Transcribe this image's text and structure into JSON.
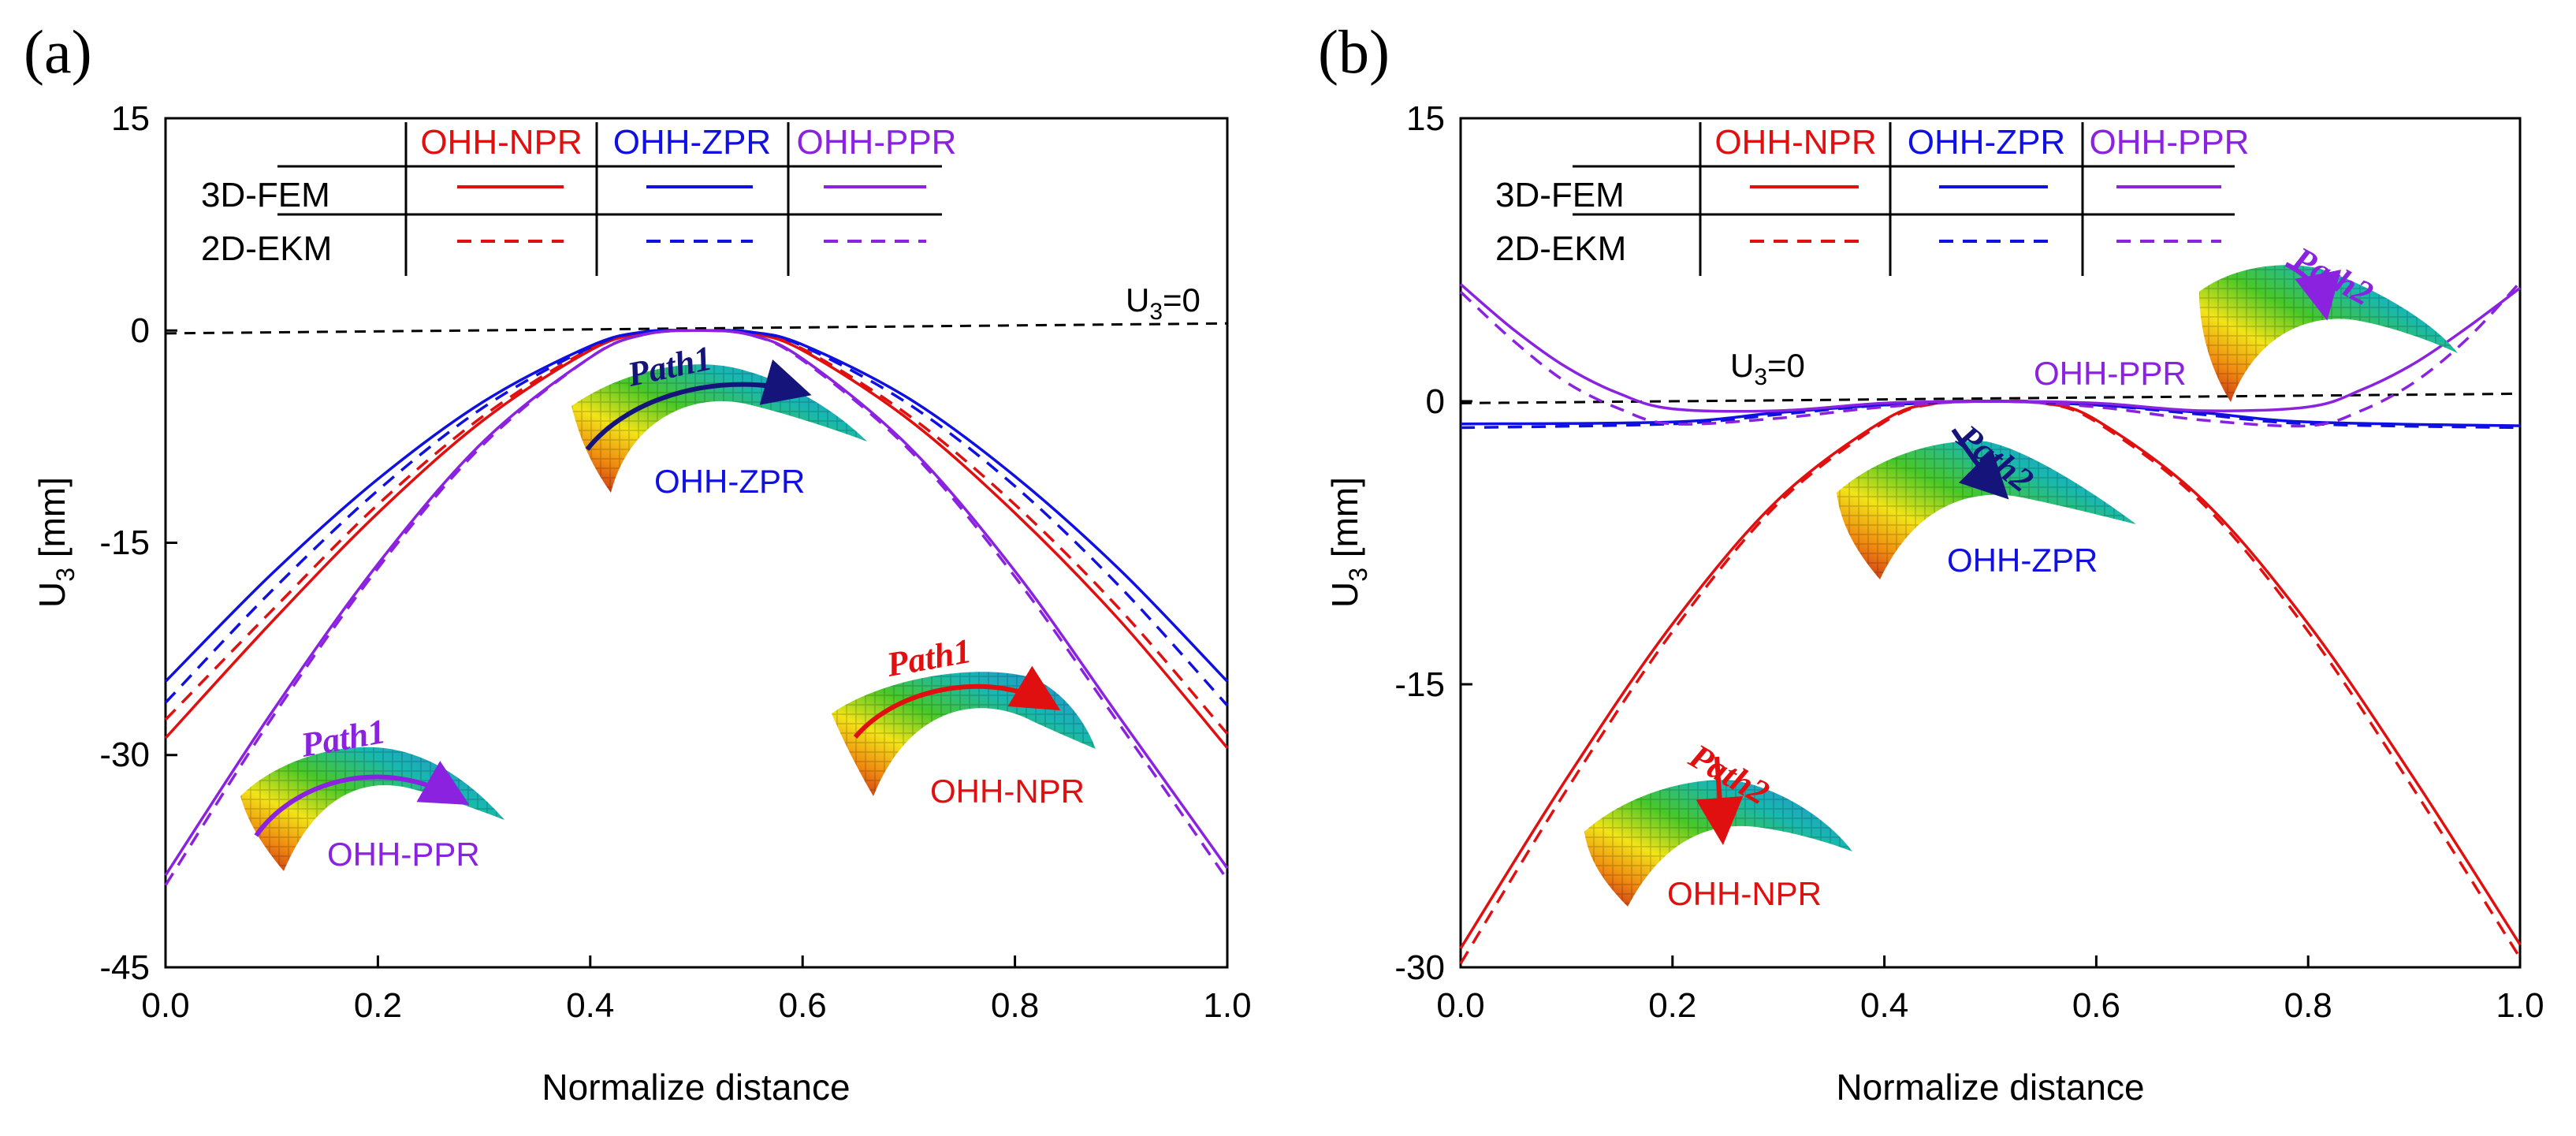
{
  "chart_data": [
    {
      "type": "line",
      "panel": "(a)",
      "xlabel": "Normalize distance",
      "ylabel": "U",
      "ylabel_sub": "3",
      "ylabel_unit": " [mm]",
      "xlim": [
        0.0,
        1.0
      ],
      "ylim": [
        -45,
        15
      ],
      "xticks": [
        "0.0",
        "0.2",
        "0.4",
        "0.6",
        "0.8",
        "1.0"
      ],
      "yticks": [
        "15",
        "0",
        "-15",
        "-30",
        "-45"
      ],
      "legend": {
        "columns": [
          "OHH-NPR",
          "OHH-ZPR",
          "OHH-PPR"
        ],
        "rows": [
          "3D-FEM",
          "2D-EKM"
        ]
      },
      "reference": {
        "label": "U",
        "sub": "3",
        "suffix": "=0",
        "y0": -0.2,
        "y1": 0.5
      },
      "annotations": [
        {
          "text": "OHH-ZPR",
          "color": "#1010e0",
          "path_label": "Path1"
        },
        {
          "text": "OHH-NPR",
          "color": "#e01010",
          "path_label": "Path1"
        },
        {
          "text": "OHH-PPR",
          "color": "#8a22e0",
          "path_label": "Path1"
        }
      ],
      "series": [
        {
          "name": "OHH-NPR 3D-FEM",
          "color": "#e01010",
          "dash": false,
          "x": [
            0,
            0.1,
            0.2,
            0.3,
            0.4,
            0.45,
            0.5,
            0.55,
            0.6,
            0.7,
            0.8,
            0.9,
            1.0
          ],
          "y": [
            -28.8,
            -20.6,
            -12.9,
            -6.3,
            -1.4,
            -0.2,
            0,
            -0.2,
            -1.4,
            -6.3,
            -12.9,
            -20.6,
            -29.5
          ]
        },
        {
          "name": "OHH-NPR 2D-EKM",
          "color": "#e01010",
          "dash": true,
          "x": [
            0,
            0.1,
            0.2,
            0.3,
            0.4,
            0.45,
            0.5,
            0.55,
            0.6,
            0.7,
            0.8,
            0.9,
            1.0
          ],
          "y": [
            -27.5,
            -19.8,
            -12.3,
            -6.0,
            -1.3,
            -0.2,
            0,
            -0.2,
            -1.3,
            -6.0,
            -12.3,
            -19.8,
            -28.5
          ]
        },
        {
          "name": "OHH-ZPR 3D-FEM",
          "color": "#1010e0",
          "dash": false,
          "x": [
            0,
            0.1,
            0.2,
            0.3,
            0.4,
            0.45,
            0.5,
            0.55,
            0.6,
            0.7,
            0.8,
            0.9,
            1.0
          ],
          "y": [
            -24.8,
            -17.2,
            -10.5,
            -5.0,
            -1.1,
            -0.1,
            0,
            -0.1,
            -1.0,
            -4.8,
            -10.3,
            -17.0,
            -24.8
          ]
        },
        {
          "name": "OHH-ZPR 2D-EKM",
          "color": "#1010e0",
          "dash": true,
          "x": [
            0,
            0.1,
            0.2,
            0.3,
            0.4,
            0.45,
            0.5,
            0.55,
            0.6,
            0.7,
            0.8,
            0.9,
            1.0
          ],
          "y": [
            -26.3,
            -18.4,
            -11.3,
            -5.4,
            -1.2,
            -0.1,
            0,
            -0.1,
            -1.1,
            -5.2,
            -11.0,
            -18.2,
            -26.5
          ]
        },
        {
          "name": "OHH-PPR 3D-FEM",
          "color": "#8a22e0",
          "dash": false,
          "x": [
            0,
            0.1,
            0.2,
            0.3,
            0.4,
            0.45,
            0.5,
            0.55,
            0.6,
            0.7,
            0.8,
            0.9,
            1.0
          ],
          "y": [
            -38.5,
            -27.0,
            -16.5,
            -7.8,
            -1.9,
            -0.3,
            0,
            -0.3,
            -2.0,
            -8.2,
            -17.0,
            -27.5,
            -38.0
          ]
        },
        {
          "name": "OHH-PPR 2D-EKM",
          "color": "#8a22e0",
          "dash": true,
          "x": [
            0,
            0.1,
            0.2,
            0.3,
            0.4,
            0.45,
            0.5,
            0.55,
            0.6,
            0.7,
            0.8,
            0.9,
            1.0
          ],
          "y": [
            -39.2,
            -27.4,
            -16.8,
            -8.0,
            -1.9,
            -0.3,
            0,
            -0.3,
            -2.1,
            -8.4,
            -17.4,
            -28.0,
            -38.8
          ]
        }
      ]
    },
    {
      "type": "line",
      "panel": "(b)",
      "xlabel": "Normalize distance",
      "ylabel": "U",
      "ylabel_sub": "3",
      "ylabel_unit": " [mm]",
      "xlim": [
        0.0,
        1.0
      ],
      "ylim": [
        -30,
        15
      ],
      "xticks": [
        "0.0",
        "0.2",
        "0.4",
        "0.6",
        "0.8",
        "1.0"
      ],
      "yticks": [
        "15",
        "0",
        "-15",
        "-30"
      ],
      "legend": {
        "columns": [
          "OHH-NPR",
          "OHH-ZPR",
          "OHH-PPR"
        ],
        "rows": [
          "3D-FEM",
          "2D-EKM"
        ]
      },
      "reference": {
        "label": "U",
        "sub": "3",
        "suffix": "=0",
        "y0": -0.1,
        "y1": 0.4
      },
      "annotations": [
        {
          "text": "OHH-PPR",
          "color": "#8a22e0",
          "path_label": "Path2"
        },
        {
          "text": "OHH-ZPR",
          "color": "#1010e0",
          "path_label": "Path2"
        },
        {
          "text": "OHH-NPR",
          "color": "#e01010",
          "path_label": "Path2"
        }
      ],
      "series": [
        {
          "name": "OHH-NPR 3D-FEM",
          "color": "#e01010",
          "dash": false,
          "x": [
            0,
            0.1,
            0.2,
            0.3,
            0.4,
            0.45,
            0.5,
            0.55,
            0.6,
            0.7,
            0.8,
            0.9,
            1.0
          ],
          "y": [
            -29.0,
            -20.0,
            -11.8,
            -5.2,
            -1.0,
            -0.1,
            0,
            -0.1,
            -1.0,
            -5.2,
            -11.8,
            -20.0,
            -28.8
          ]
        },
        {
          "name": "OHH-NPR 2D-EKM",
          "color": "#e01010",
          "dash": true,
          "x": [
            0,
            0.1,
            0.2,
            0.3,
            0.4,
            0.45,
            0.5,
            0.55,
            0.6,
            0.7,
            0.8,
            0.9,
            1.0
          ],
          "y": [
            -29.8,
            -20.6,
            -12.2,
            -5.4,
            -1.1,
            -0.1,
            0,
            -0.1,
            -1.1,
            -5.4,
            -12.2,
            -20.6,
            -29.5
          ]
        },
        {
          "name": "OHH-ZPR 3D-FEM",
          "color": "#1010e0",
          "dash": false,
          "x": [
            0,
            0.2,
            0.3,
            0.4,
            0.5,
            0.6,
            0.7,
            0.8,
            1.0
          ],
          "y": [
            -1.2,
            -1.1,
            -0.6,
            -0.2,
            0,
            -0.2,
            -0.6,
            -1.1,
            -1.3
          ]
        },
        {
          "name": "OHH-ZPR 2D-EKM",
          "color": "#1010e0",
          "dash": true,
          "x": [
            0,
            0.2,
            0.3,
            0.4,
            0.5,
            0.6,
            0.7,
            0.8,
            1.0
          ],
          "y": [
            -1.4,
            -1.2,
            -0.7,
            -0.2,
            0,
            -0.2,
            -0.7,
            -1.2,
            -1.4
          ]
        },
        {
          "name": "OHH-PPR 3D-FEM",
          "color": "#8a22e0",
          "dash": false,
          "x": [
            0,
            0.05,
            0.1,
            0.15,
            0.2,
            0.3,
            0.4,
            0.5,
            0.6,
            0.7,
            0.8,
            0.85,
            0.9,
            0.95,
            1.0
          ],
          "y": [
            6.2,
            3.8,
            1.8,
            0.4,
            -0.4,
            -0.5,
            -0.1,
            0,
            -0.1,
            -0.5,
            -0.3,
            0.6,
            2.0,
            3.9,
            6.0
          ]
        },
        {
          "name": "OHH-PPR 2D-EKM",
          "color": "#8a22e0",
          "dash": true,
          "x": [
            0,
            0.05,
            0.1,
            0.15,
            0.2,
            0.3,
            0.4,
            0.5,
            0.6,
            0.7,
            0.8,
            0.85,
            0.9,
            0.95,
            1.0
          ],
          "y": [
            5.8,
            3.2,
            1.0,
            -0.4,
            -1.2,
            -0.9,
            -0.3,
            0,
            -0.3,
            -1.0,
            -1.3,
            -0.5,
            1.0,
            3.3,
            6.3
          ]
        }
      ]
    }
  ]
}
